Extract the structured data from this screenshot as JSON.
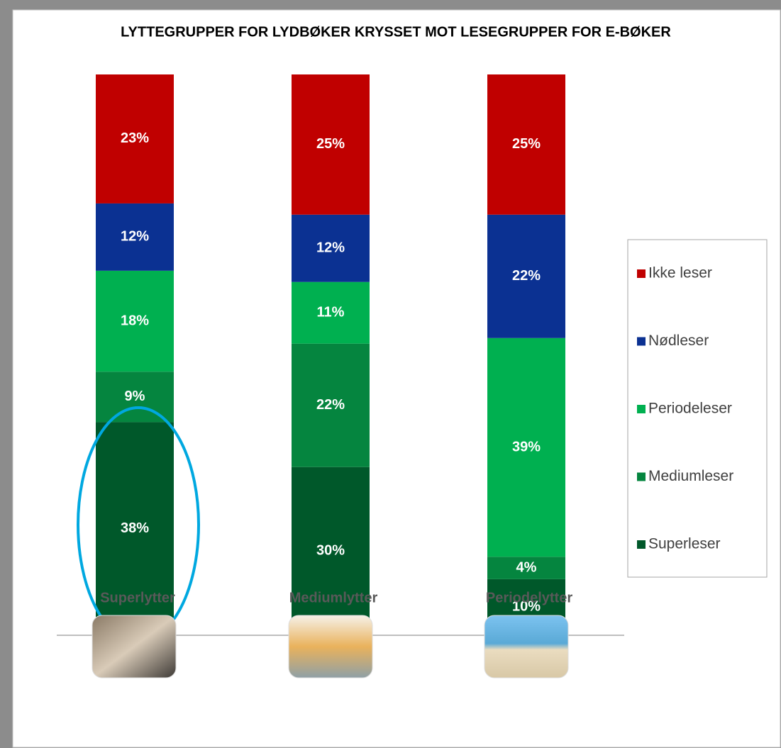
{
  "chart_data": {
    "type": "stacked_bar",
    "title": "LYTTEGRUPPER FOR LYDBØKER KRYSSET MOT LESEGRUPPER FOR E-BØKER",
    "categories": [
      "Superlytter",
      "Mediumlytter",
      "Periodelytter"
    ],
    "ylim": [
      0,
      100
    ],
    "legend": "right",
    "series": [
      {
        "name": "Superleser",
        "color": "#00582a",
        "values": [
          38,
          30,
          10
        ],
        "value_labels": [
          "38%",
          "30%",
          "10%"
        ]
      },
      {
        "name": "Mediumleser",
        "color": "#05853f",
        "values": [
          9,
          22,
          4
        ],
        "value_labels": [
          "9%",
          "22%",
          "4%"
        ]
      },
      {
        "name": "Periodeleser",
        "color": "#00b050",
        "values": [
          18,
          11,
          39
        ],
        "value_labels": [
          "18%",
          "11%",
          "39%"
        ]
      },
      {
        "name": "Nødleser",
        "color": "#0b3192",
        "values": [
          12,
          12,
          22
        ],
        "value_labels": [
          "12%",
          "12%",
          "22%"
        ]
      },
      {
        "name": "Ikke leser",
        "color": "#c00000",
        "values": [
          23,
          25,
          25
        ],
        "value_labels": [
          "23%",
          "25%",
          "25%"
        ]
      }
    ]
  }
}
